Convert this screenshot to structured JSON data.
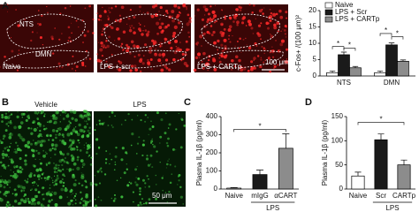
{
  "panel_labels": [
    "A",
    "B",
    "C",
    "D"
  ],
  "images_a": {
    "labels": [
      "Naive",
      "LPS + scr",
      "LPS + CARTp"
    ],
    "regions": [
      "NTS",
      "DMN"
    ],
    "scale_bar": "100 μm"
  },
  "images_b": {
    "labels": [
      "Vehicle",
      "LPS"
    ],
    "scale_bar": "50 μm"
  },
  "chart_data": [
    {
      "type": "bar",
      "ylabel": "c-Fos+ /(100 μm)²",
      "categories": [
        "NTS",
        "DMN"
      ],
      "series": [
        {
          "name": "Naive",
          "color": "#ffffff",
          "values": [
            1,
            1
          ],
          "errors": [
            0.5,
            0.5
          ]
        },
        {
          "name": "LPS + Scr",
          "color": "#1a1a1a",
          "values": [
            6.5,
            9.5
          ],
          "errors": [
            0.8,
            0.6
          ]
        },
        {
          "name": "LPS + CARTp",
          "color": "#8c8c8c",
          "values": [
            2.5,
            4.5
          ],
          "errors": [
            0.4,
            0.4
          ]
        }
      ],
      "ylim": [
        0,
        20
      ],
      "yticks": [
        0,
        5,
        10,
        15,
        20
      ],
      "annotations": [
        "*",
        "*",
        "*",
        "*"
      ]
    },
    {
      "type": "bar",
      "ylabel": "Plasma IL-1β (pg/ml)",
      "categories": [
        "Naive",
        "mIgG",
        "αCART"
      ],
      "series": [
        {
          "colors": [
            "#ffffff",
            "#1a1a1a",
            "#8c8c8c"
          ],
          "values": [
            5,
            80,
            225
          ],
          "errors": [
            3,
            25,
            80
          ]
        }
      ],
      "ylim": [
        0,
        400
      ],
      "yticks": [
        0,
        100,
        200,
        300,
        400
      ],
      "annotations": [
        "*"
      ],
      "group_label": "LPS"
    },
    {
      "type": "bar",
      "ylabel": "Plasma IL-1β (pg/ml)",
      "categories": [
        "Naive",
        "Scr",
        "CARTp"
      ],
      "series": [
        {
          "colors": [
            "#ffffff",
            "#1a1a1a",
            "#8c8c8c"
          ],
          "values": [
            27,
            102,
            50
          ],
          "errors": [
            8,
            12,
            10
          ]
        }
      ],
      "ylim": [
        0,
        150
      ],
      "yticks": [
        0,
        50,
        100,
        150
      ],
      "annotations": [
        "*"
      ],
      "group_label": "LPS"
    }
  ]
}
